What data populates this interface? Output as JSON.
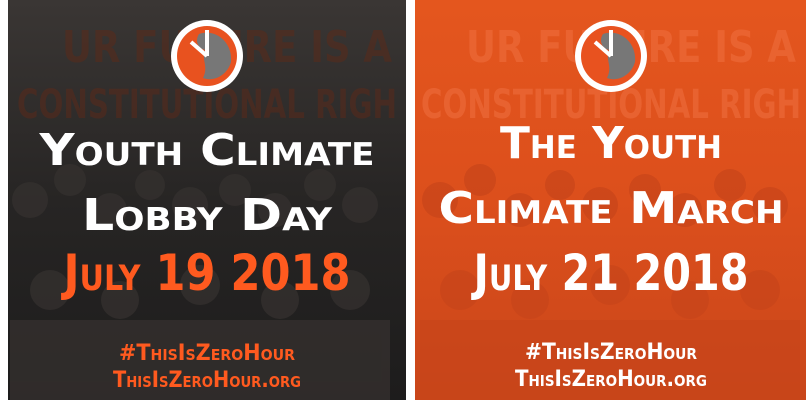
{
  "panels": [
    {
      "banner": [
        "UR FUTURE IS A",
        "CONSTITUTIONAL RIGH"
      ],
      "title": [
        "Youth Climate",
        "Lobby Day"
      ],
      "date": "July 19 2018",
      "hashtag": "#ThisIsZeroHour",
      "url": "ThisIsZeroHour.org"
    },
    {
      "banner": [
        "UR FUTURE IS A",
        "CONSTITUTIONAL RIGH"
      ],
      "title": [
        "The Youth",
        "Climate March"
      ],
      "date": "July 21 2018",
      "hashtag": "#ThisIsZeroHour",
      "url": "ThisIsZeroHour.org"
    }
  ]
}
